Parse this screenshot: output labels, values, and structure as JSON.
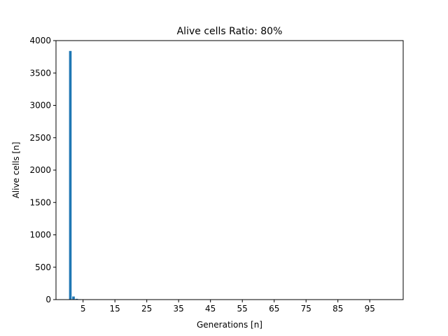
{
  "chart_data": {
    "type": "bar",
    "title": "Alive cells Ratio: 80%",
    "xlabel": "Generations [n]",
    "ylabel": "Alive cells [n]",
    "x": [
      1,
      2,
      3,
      4,
      5,
      6,
      7,
      8,
      9,
      10,
      11,
      12,
      13,
      14,
      15,
      16,
      17,
      18,
      19,
      20,
      21,
      22,
      23,
      24,
      25,
      26,
      27,
      28,
      29,
      30,
      31,
      32,
      33,
      34,
      35,
      36,
      37,
      38,
      39,
      40,
      41,
      42,
      43,
      44,
      45,
      46,
      47,
      48,
      49,
      50,
      51,
      52,
      53,
      54,
      55,
      56,
      57,
      58,
      59,
      60,
      61,
      62,
      63,
      64,
      65,
      66,
      67,
      68,
      69,
      70,
      71,
      72,
      73,
      74,
      75,
      76,
      77,
      78,
      79,
      80,
      81,
      82,
      83,
      84,
      85,
      86,
      87,
      88,
      89,
      90,
      91,
      92,
      93,
      94,
      95,
      96,
      97,
      98,
      99,
      100
    ],
    "values": [
      3840,
      48,
      12,
      6,
      5,
      4,
      4,
      4,
      4,
      4,
      4,
      4,
      4,
      4,
      4,
      4,
      4,
      4,
      4,
      4,
      4,
      4,
      4,
      4,
      4,
      4,
      4,
      4,
      4,
      4,
      4,
      4,
      4,
      4,
      4,
      4,
      4,
      4,
      4,
      4,
      4,
      4,
      4,
      4,
      4,
      4,
      4,
      4,
      4,
      4,
      4,
      4,
      4,
      4,
      4,
      4,
      4,
      4,
      4,
      4,
      4,
      4,
      4,
      4,
      4,
      4,
      4,
      4,
      4,
      4,
      4,
      4,
      4,
      4,
      4,
      4,
      4,
      4,
      4,
      4,
      4,
      4,
      4,
      4,
      4,
      4,
      4,
      4,
      4,
      4,
      4,
      4,
      4,
      4,
      4,
      4,
      4,
      4,
      4,
      4
    ],
    "xlim": [
      -3.5,
      105.5
    ],
    "ylim": [
      0,
      4000
    ],
    "xticks": [
      5,
      15,
      25,
      35,
      45,
      55,
      65,
      75,
      85,
      95
    ],
    "xtick_labels": [
      "5",
      "15",
      "25",
      "35",
      "45",
      "55",
      "65",
      "75",
      "85",
      "95"
    ],
    "yticks": [
      0,
      500,
      1000,
      1500,
      2000,
      2500,
      3000,
      3500,
      4000
    ],
    "ytick_labels": [
      "0",
      "500",
      "1000",
      "1500",
      "2000",
      "2500",
      "3000",
      "3500",
      "4000"
    ],
    "bar_color": "#1f77b4",
    "grid": false,
    "legend": "none"
  }
}
